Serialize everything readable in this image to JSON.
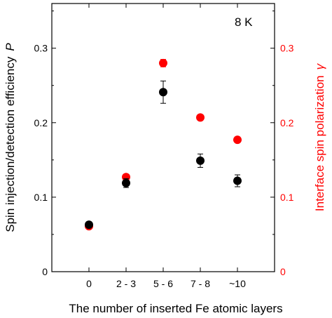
{
  "chart_data": {
    "type": "scatter",
    "categories": [
      "0",
      "2 - 3",
      "5 - 6",
      "7 - 8",
      "~10"
    ],
    "xlabel": "The number of inserted Fe atomic layers",
    "ylabel_left": "Spin injection/detection efficiency",
    "ylabel_left_symbol": "P",
    "ylabel_right": "Interface spin polarization",
    "ylabel_right_symbol": "γ",
    "annotation": "8 K",
    "ylim_left": [
      0,
      0.36
    ],
    "ylim_right": [
      0,
      0.36
    ],
    "yticks_left": [
      0,
      0.1,
      0.2,
      0.3
    ],
    "yticks_right": [
      0,
      0.1,
      0.2,
      0.3
    ],
    "ytick_labels_left": [
      "0",
      "0.1",
      "0.2",
      "0.3"
    ],
    "ytick_labels_right": [
      "0",
      "0.1",
      "0.2",
      "0.3"
    ],
    "series": [
      {
        "axis": "left",
        "color": "#000000",
        "values": [
          0.063,
          0.119,
          0.241,
          0.149,
          0.122
        ],
        "errors": [
          0.003,
          0.006,
          0.015,
          0.009,
          0.008
        ]
      },
      {
        "axis": "right",
        "color": "#ff0000",
        "values": [
          0.061,
          0.127,
          0.28,
          0.207,
          0.177
        ],
        "errors": [
          0.0,
          0.0,
          0.005,
          0.0,
          0.0
        ]
      }
    ],
    "grid": false,
    "legend": "none"
  }
}
